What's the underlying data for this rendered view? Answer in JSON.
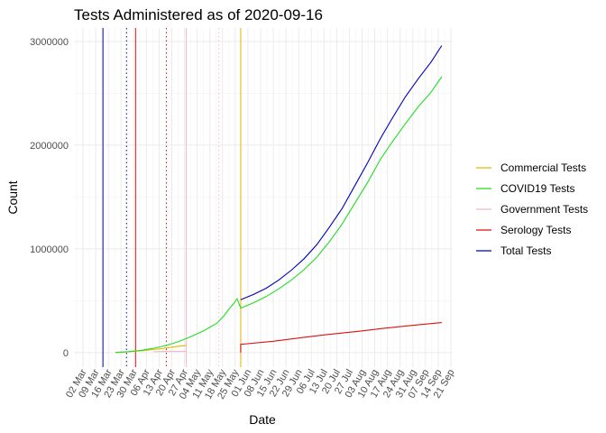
{
  "chart_data": {
    "type": "line",
    "title": "Tests Administered as of 2020-09-16",
    "xlabel": "Date",
    "ylabel": "Count",
    "xlim": [
      "2020-02-26",
      "2020-09-22"
    ],
    "ylim": [
      -140000,
      3130000
    ],
    "x_ticks": [
      "2020-03-02",
      "2020-03-09",
      "2020-03-16",
      "2020-03-23",
      "2020-03-30",
      "2020-04-06",
      "2020-04-13",
      "2020-04-20",
      "2020-04-27",
      "2020-05-04",
      "2020-05-11",
      "2020-05-18",
      "2020-05-25",
      "2020-06-01",
      "2020-06-08",
      "2020-06-15",
      "2020-06-22",
      "2020-06-29",
      "2020-07-06",
      "2020-07-13",
      "2020-07-20",
      "2020-07-27",
      "2020-08-03",
      "2020-08-10",
      "2020-08-17",
      "2020-08-24",
      "2020-08-31",
      "2020-09-07",
      "2020-09-14",
      "2020-09-21"
    ],
    "x_tick_labels": [
      "02 Mar",
      "09 Mar",
      "16 Mar",
      "23 Mar",
      "30 Mar",
      "06 Apr",
      "13 Apr",
      "20 Apr",
      "27 Apr",
      "04 May",
      "11 May",
      "18 May",
      "25 May",
      "01 Jun",
      "08 Jun",
      "15 Jun",
      "22 Jun",
      "29 Jun",
      "06 Jul",
      "13 Jul",
      "20 Jul",
      "27 Jul",
      "03 Aug",
      "10 Aug",
      "17 Aug",
      "24 Aug",
      "31 Aug",
      "07 Sep",
      "14 Sep",
      "21 Sep"
    ],
    "y_ticks": [
      0,
      1000000,
      2000000,
      3000000
    ],
    "y_tick_labels": [
      "0",
      "1000000",
      "2000000",
      "3000000"
    ],
    "grid": true,
    "legend_position": "right",
    "series": [
      {
        "name": "Commercial Tests",
        "color": "#e6b800",
        "points": [
          [
            "2020-03-20",
            2000
          ],
          [
            "2020-03-27",
            8000
          ],
          [
            "2020-04-03",
            18000
          ],
          [
            "2020-04-10",
            30000
          ],
          [
            "2020-04-17",
            45000
          ],
          [
            "2020-04-24",
            62000
          ],
          [
            "2020-04-28",
            70000
          ]
        ]
      },
      {
        "name": "COVID19 Tests",
        "color": "#22dd22",
        "points": [
          [
            "2020-03-20",
            2000
          ],
          [
            "2020-03-27",
            10000
          ],
          [
            "2020-04-03",
            22000
          ],
          [
            "2020-04-10",
            42000
          ],
          [
            "2020-04-17",
            70000
          ],
          [
            "2020-04-24",
            108000
          ],
          [
            "2020-05-01",
            158000
          ],
          [
            "2020-05-08",
            215000
          ],
          [
            "2020-05-15",
            285000
          ],
          [
            "2020-05-19",
            360000
          ],
          [
            "2020-05-22",
            430000
          ],
          [
            "2020-05-24",
            470000
          ],
          [
            "2020-05-26",
            520000
          ],
          [
            "2020-05-28",
            430000
          ],
          [
            "2020-06-04",
            480000
          ],
          [
            "2020-06-11",
            540000
          ],
          [
            "2020-06-18",
            615000
          ],
          [
            "2020-06-25",
            700000
          ],
          [
            "2020-07-02",
            800000
          ],
          [
            "2020-07-09",
            920000
          ],
          [
            "2020-07-16",
            1070000
          ],
          [
            "2020-07-23",
            1240000
          ],
          [
            "2020-07-30",
            1440000
          ],
          [
            "2020-08-06",
            1640000
          ],
          [
            "2020-08-13",
            1860000
          ],
          [
            "2020-08-20",
            2040000
          ],
          [
            "2020-08-27",
            2210000
          ],
          [
            "2020-09-03",
            2370000
          ],
          [
            "2020-09-10",
            2510000
          ],
          [
            "2020-09-16",
            2660000
          ]
        ]
      },
      {
        "name": "Government Tests",
        "color": "#f4b8c4",
        "points": [
          [
            "2020-04-10",
            10000
          ],
          [
            "2020-04-17",
            11000
          ],
          [
            "2020-04-24",
            12000
          ],
          [
            "2020-04-28",
            13000
          ]
        ]
      },
      {
        "name": "Serology Tests",
        "color": "#dd1111",
        "points": [
          [
            "2020-05-28",
            0
          ],
          [
            "2020-05-28",
            80000
          ],
          [
            "2020-06-15",
            110000
          ],
          [
            "2020-07-01",
            145000
          ],
          [
            "2020-07-15",
            175000
          ],
          [
            "2020-08-01",
            205000
          ],
          [
            "2020-08-15",
            235000
          ],
          [
            "2020-09-01",
            265000
          ],
          [
            "2020-09-16",
            290000
          ]
        ]
      },
      {
        "name": "Total Tests",
        "color": "#0000bb",
        "points": [
          [
            "2020-05-28",
            510000
          ],
          [
            "2020-06-04",
            560000
          ],
          [
            "2020-06-11",
            620000
          ],
          [
            "2020-06-18",
            700000
          ],
          [
            "2020-06-25",
            795000
          ],
          [
            "2020-07-02",
            905000
          ],
          [
            "2020-07-09",
            1040000
          ],
          [
            "2020-07-16",
            1210000
          ],
          [
            "2020-07-23",
            1390000
          ],
          [
            "2020-07-30",
            1610000
          ],
          [
            "2020-08-06",
            1830000
          ],
          [
            "2020-08-13",
            2060000
          ],
          [
            "2020-08-20",
            2270000
          ],
          [
            "2020-08-27",
            2470000
          ],
          [
            "2020-09-03",
            2640000
          ],
          [
            "2020-09-10",
            2800000
          ],
          [
            "2020-09-16",
            2960000
          ]
        ]
      }
    ],
    "vlines": [
      {
        "x": "2020-03-13",
        "color": "#0000bb",
        "style": "solid"
      },
      {
        "x": "2020-03-26",
        "color": "#0000bb",
        "style": "dotted"
      },
      {
        "x": "2020-03-31",
        "color": "#dd1111",
        "style": "solid"
      },
      {
        "x": "2020-04-17",
        "color": "#dd1111",
        "style": "dotted"
      },
      {
        "x": "2020-04-28",
        "color": "#f4b8c4",
        "style": "solid"
      },
      {
        "x": "2020-05-16",
        "color": "#f4b8c4",
        "style": "dotted"
      },
      {
        "x": "2020-05-28",
        "color": "#e6b800",
        "style": "solid"
      }
    ]
  }
}
